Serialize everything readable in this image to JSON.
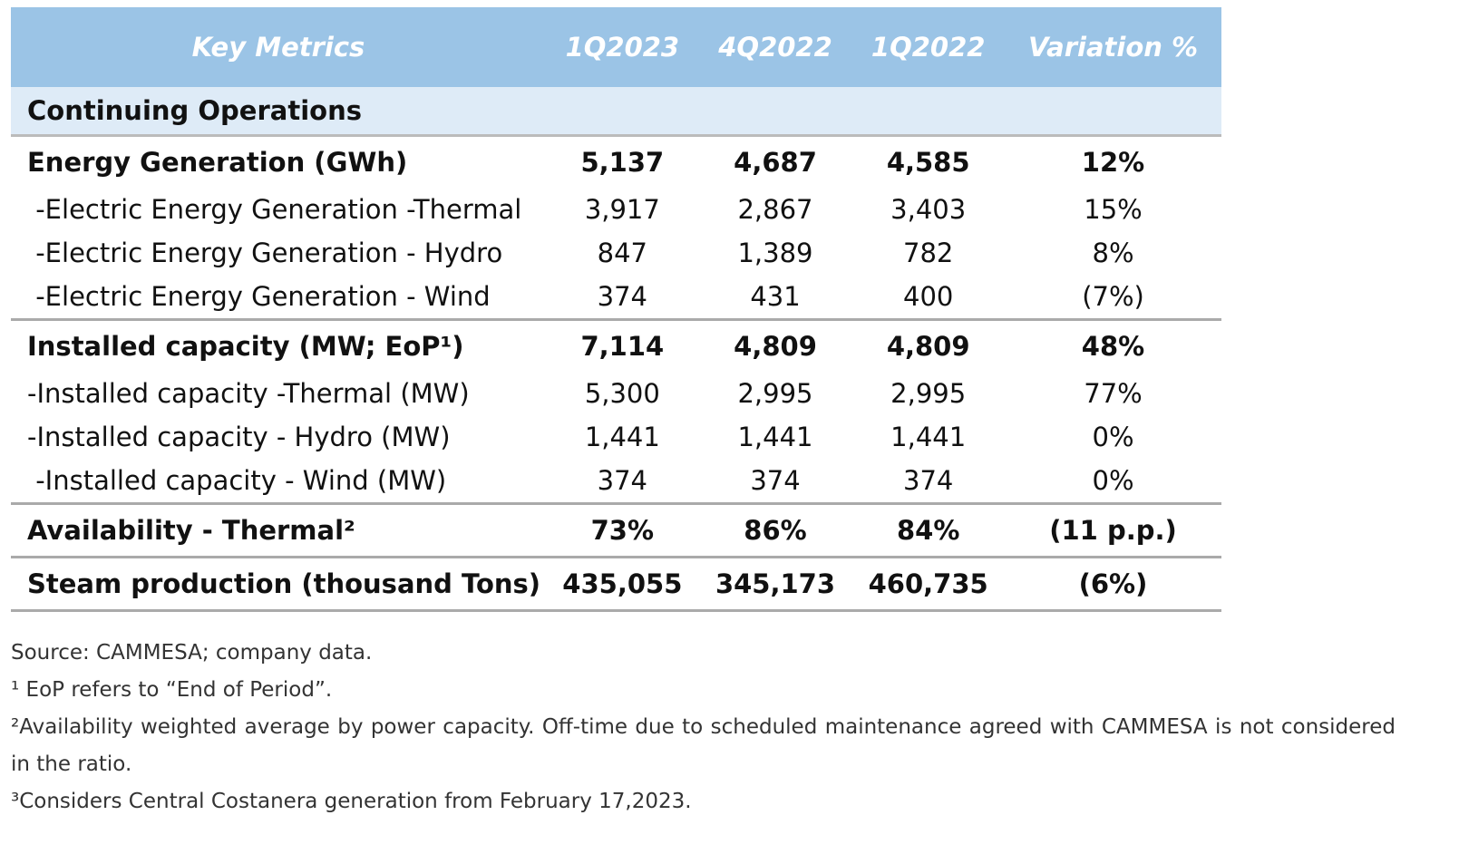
{
  "table": {
    "header": [
      "Key Metrics",
      "1Q2023",
      "4Q2022",
      "1Q2022",
      "Variation %"
    ],
    "section": "Continuing Operations",
    "rows": [
      [
        "Energy Generation (GWh)",
        "5,137",
        "4,687",
        "4,585",
        "12%"
      ],
      [
        " -Electric Energy Generation -Thermal",
        "3,917",
        "2,867",
        "3,403",
        "15%"
      ],
      [
        " -Electric Energy Generation - Hydro",
        "847",
        "1,389",
        "782",
        "8%"
      ],
      [
        " -Electric Energy Generation - Wind",
        "374",
        "431",
        "400",
        "(7%)"
      ],
      [
        "Installed capacity (MW; EoP¹)",
        "7,114",
        "4,809",
        "4,809",
        "48%"
      ],
      [
        "-Installed capacity -Thermal (MW)",
        "5,300",
        "2,995",
        "2,995",
        "77%"
      ],
      [
        "-Installed capacity - Hydro (MW)",
        "1,441",
        "1,441",
        "1,441",
        "0%"
      ],
      [
        " -Installed capacity - Wind (MW)",
        "374",
        "374",
        "374",
        "0%"
      ],
      [
        "Availability - Thermal²",
        "73%",
        "86%",
        "84%",
        "(11 p.p.)"
      ],
      [
        "Steam production (thousand Tons)",
        "435,055",
        "345,173",
        "460,735",
        "(6%)"
      ]
    ]
  },
  "footnotes": [
    "Source: CAMMESA; company data.",
    "¹ EoP refers to “End of Period”.",
    "²Availability weighted average by power capacity. Off-time due to scheduled maintenance agreed with CAMMESA is not considered in the ratio.",
    "³Considers Central Costanera generation from February 17,2023."
  ]
}
